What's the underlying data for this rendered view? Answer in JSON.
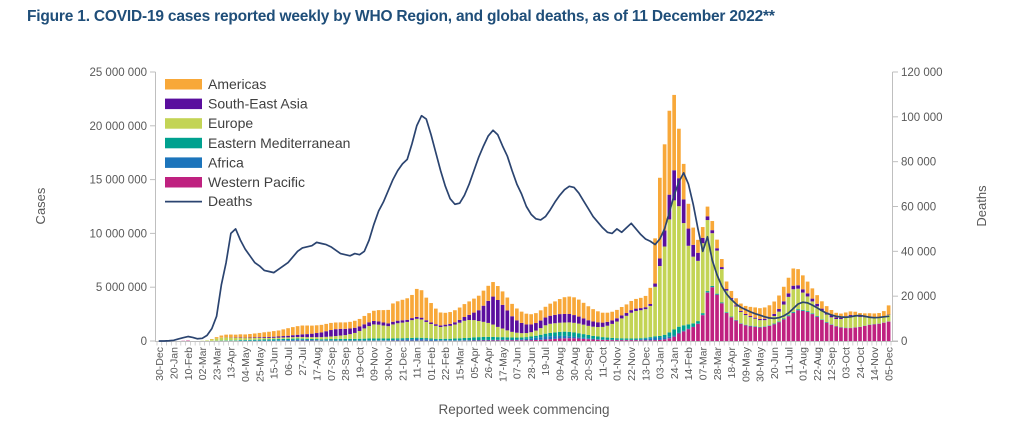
{
  "title": "Figure 1. COVID-19 cases reported weekly by WHO Region, and global deaths, as of 11 December 2022**",
  "colors": {
    "title": "#1F4E79",
    "axis_text": "#595959",
    "axis_line": "#BFBFBF",
    "legend_text": "#404040"
  },
  "chart_data": {
    "type": "stacked-bar+line",
    "x_axis": {
      "label": "Reported week commencing",
      "n_bars": 154,
      "tick_every_n_bars": 3,
      "tick_labels": [
        "30-Dec",
        "20-Jan",
        "10-Feb",
        "02-Mar",
        "23-Mar",
        "13-Apr",
        "04-May",
        "25-May",
        "15-Jun",
        "06-Jul",
        "27-Jul",
        "17-Aug",
        "07-Sep",
        "28-Sep",
        "19-Oct",
        "09-Nov",
        "30-Nov",
        "21-Dec",
        "11-Jan",
        "01-Feb",
        "22-Feb",
        "15-Mar",
        "05-Apr",
        "26-Apr",
        "17-May",
        "07-Jun",
        "28-Jun",
        "19-Jul",
        "09-Aug",
        "30-Aug",
        "20-Sep",
        "11-Oct",
        "01-Nov",
        "22-Nov",
        "13-Dec",
        "03-Jan",
        "24-Jan",
        "14-Feb",
        "07-Mar",
        "28-Mar",
        "18-Apr",
        "09-May",
        "30-May",
        "20-Jun",
        "11-Jul",
        "01-Aug",
        "22-Aug",
        "12-Sep",
        "03-Oct",
        "24-Oct",
        "14-Nov",
        "05-Dec"
      ]
    },
    "y_left": {
      "label": "Cases",
      "max_millions": 25,
      "tick_labels": [
        "0",
        "5 000 000",
        "10 000 000",
        "15 000 000",
        "20 000 000",
        "25 000 000"
      ]
    },
    "y_right": {
      "label": "Deaths",
      "max_thousands": 120,
      "tick_labels": [
        "0",
        "20 000",
        "40 000",
        "60 000",
        "80 000",
        "100 000",
        "120 000"
      ]
    },
    "series_unit": "weekly reported cases, millions",
    "stack_order_bottom_to_top": [
      "Western Pacific",
      "Africa",
      "Eastern Mediterranean",
      "Europe",
      "South-East Asia",
      "Americas"
    ],
    "series": [
      {
        "name": "Americas",
        "color": "#F8A839",
        "values": [
          0,
          0,
          0,
          0,
          0,
          0,
          0,
          0,
          0.01,
          0.01,
          0.01,
          0.04,
          0.12,
          0.2,
          0.25,
          0.27,
          0.27,
          0.29,
          0.3,
          0.33,
          0.36,
          0.4,
          0.45,
          0.48,
          0.52,
          0.56,
          0.62,
          0.7,
          0.75,
          0.8,
          0.82,
          0.8,
          0.75,
          0.72,
          0.7,
          0.68,
          0.66,
          0.62,
          0.6,
          0.6,
          0.62,
          0.65,
          0.7,
          0.78,
          0.85,
          0.95,
          1.05,
          1.15,
          1.25,
          1.7,
          1.8,
          1.9,
          2.0,
          2.15,
          2.6,
          2.55,
          2.1,
          1.8,
          1.45,
          1.2,
          1.1,
          1.1,
          1.12,
          1.15,
          1.2,
          1.25,
          1.3,
          1.35,
          1.4,
          1.4,
          1.35,
          1.3,
          1.25,
          1.2,
          1.15,
          1.1,
          1.05,
          1.0,
          0.95,
          0.92,
          0.95,
          1.0,
          1.12,
          1.25,
          1.4,
          1.55,
          1.62,
          1.65,
          1.58,
          1.45,
          1.3,
          1.15,
          1.02,
          0.92,
          0.85,
          0.8,
          0.78,
          0.78,
          0.8,
          0.85,
          0.9,
          0.95,
          1.05,
          1.5,
          4.2,
          7.5,
          8.0,
          7.8,
          7.0,
          4.6,
          3.3,
          2.3,
          1.6,
          1.2,
          1.0,
          0.9,
          0.85,
          0.8,
          0.75,
          0.7,
          0.66,
          0.65,
          0.68,
          0.75,
          0.85,
          0.95,
          1.0,
          1.05,
          1.1,
          1.15,
          1.25,
          1.35,
          1.45,
          1.6,
          1.5,
          1.3,
          1.1,
          0.95,
          0.8,
          0.68,
          0.58,
          0.5,
          0.43,
          0.38,
          0.35,
          0.33,
          0.32,
          0.31,
          0.31,
          0.32,
          0.34,
          0.38,
          0.5,
          0.85
        ]
      },
      {
        "name": "South-East Asia",
        "color": "#5A0E9E",
        "values": [
          0,
          0,
          0,
          0,
          0,
          0,
          0,
          0,
          0,
          0,
          0,
          0,
          0.01,
          0.01,
          0.02,
          0.02,
          0.03,
          0.04,
          0.04,
          0.05,
          0.06,
          0.07,
          0.08,
          0.09,
          0.1,
          0.11,
          0.13,
          0.15,
          0.18,
          0.21,
          0.25,
          0.28,
          0.32,
          0.38,
          0.44,
          0.52,
          0.6,
          0.64,
          0.62,
          0.58,
          0.52,
          0.48,
          0.42,
          0.38,
          0.35,
          0.32,
          0.3,
          0.28,
          0.26,
          0.25,
          0.24,
          0.22,
          0.2,
          0.19,
          0.18,
          0.17,
          0.16,
          0.15,
          0.15,
          0.15,
          0.16,
          0.18,
          0.21,
          0.26,
          0.35,
          0.48,
          0.7,
          1.0,
          1.5,
          2.05,
          2.6,
          2.5,
          2.2,
          1.85,
          1.45,
          1.15,
          0.95,
          0.8,
          0.72,
          0.7,
          0.7,
          0.72,
          0.75,
          0.78,
          0.8,
          0.8,
          0.78,
          0.72,
          0.65,
          0.58,
          0.52,
          0.48,
          0.44,
          0.4,
          0.36,
          0.33,
          0.3,
          0.28,
          0.26,
          0.24,
          0.22,
          0.2,
          0.18,
          0.18,
          0.3,
          0.7,
          1.5,
          2.3,
          2.8,
          2.6,
          2.2,
          1.6,
          1.1,
          0.75,
          0.5,
          0.35,
          0.28,
          0.22,
          0.18,
          0.15,
          0.12,
          0.11,
          0.1,
          0.1,
          0.1,
          0.1,
          0.11,
          0.13,
          0.16,
          0.2,
          0.25,
          0.3,
          0.33,
          0.33,
          0.32,
          0.3,
          0.28,
          0.26,
          0.24,
          0.22,
          0.2,
          0.18,
          0.15,
          0.13,
          0.11,
          0.09,
          0.07,
          0.06,
          0.05,
          0.05,
          0.04,
          0.04,
          0.03,
          0.03
        ]
      },
      {
        "name": "Europe",
        "color": "#C3D455",
        "values": [
          0,
          0,
          0,
          0,
          0,
          0,
          0,
          0,
          0.01,
          0.02,
          0.05,
          0.12,
          0.2,
          0.25,
          0.26,
          0.24,
          0.22,
          0.2,
          0.18,
          0.17,
          0.16,
          0.15,
          0.14,
          0.13,
          0.13,
          0.13,
          0.13,
          0.13,
          0.14,
          0.14,
          0.15,
          0.16,
          0.17,
          0.18,
          0.2,
          0.22,
          0.24,
          0.28,
          0.32,
          0.36,
          0.44,
          0.55,
          0.72,
          0.95,
          1.15,
          1.3,
          1.28,
          1.2,
          1.15,
          1.3,
          1.4,
          1.45,
          1.5,
          1.65,
          1.75,
          1.7,
          1.5,
          1.35,
          1.2,
          1.1,
          1.15,
          1.2,
          1.3,
          1.45,
          1.6,
          1.65,
          1.6,
          1.5,
          1.4,
          1.3,
          1.15,
          0.95,
          0.8,
          0.65,
          0.52,
          0.45,
          0.4,
          0.38,
          0.4,
          0.48,
          0.62,
          0.78,
          0.85,
          0.85,
          0.85,
          0.85,
          0.88,
          0.9,
          0.9,
          0.88,
          0.85,
          0.85,
          0.88,
          0.95,
          1.1,
          1.3,
          1.55,
          1.85,
          2.1,
          2.4,
          2.55,
          2.6,
          2.65,
          2.9,
          4.6,
          6.5,
          8.2,
          10.5,
          12.0,
          11.2,
          9.5,
          7.3,
          6.2,
          5.6,
          6.5,
          6.6,
          4.9,
          4.0,
          3.1,
          2.0,
          1.6,
          1.25,
          1.05,
          0.9,
          0.8,
          0.7,
          0.62,
          0.58,
          0.6,
          0.7,
          0.9,
          1.3,
          1.7,
          2.1,
          1.9,
          1.6,
          1.35,
          1.1,
          0.9,
          0.78,
          0.7,
          0.65,
          0.65,
          0.75,
          0.95,
          1.1,
          1.05,
          0.9,
          0.78,
          0.68,
          0.6,
          0.55,
          0.52,
          0.6
        ]
      },
      {
        "name": "Eastern Mediterranean",
        "color": "#00A18F",
        "values": [
          0,
          0,
          0,
          0,
          0,
          0,
          0,
          0,
          0.01,
          0.01,
          0.01,
          0.01,
          0.02,
          0.03,
          0.04,
          0.05,
          0.05,
          0.06,
          0.06,
          0.07,
          0.08,
          0.09,
          0.1,
          0.11,
          0.12,
          0.12,
          0.12,
          0.12,
          0.12,
          0.11,
          0.11,
          0.1,
          0.1,
          0.1,
          0.1,
          0.11,
          0.12,
          0.13,
          0.14,
          0.14,
          0.15,
          0.15,
          0.16,
          0.17,
          0.18,
          0.18,
          0.18,
          0.17,
          0.16,
          0.15,
          0.14,
          0.13,
          0.12,
          0.12,
          0.12,
          0.12,
          0.11,
          0.11,
          0.11,
          0.12,
          0.13,
          0.14,
          0.16,
          0.18,
          0.2,
          0.22,
          0.25,
          0.27,
          0.28,
          0.28,
          0.27,
          0.25,
          0.23,
          0.21,
          0.19,
          0.17,
          0.16,
          0.16,
          0.17,
          0.19,
          0.22,
          0.26,
          0.3,
          0.34,
          0.38,
          0.4,
          0.4,
          0.38,
          0.36,
          0.33,
          0.3,
          0.27,
          0.24,
          0.21,
          0.19,
          0.17,
          0.15,
          0.14,
          0.13,
          0.12,
          0.11,
          0.1,
          0.1,
          0.1,
          0.12,
          0.15,
          0.25,
          0.4,
          0.55,
          0.55,
          0.5,
          0.4,
          0.3,
          0.22,
          0.16,
          0.12,
          0.1,
          0.08,
          0.07,
          0.06,
          0.05,
          0.04,
          0.03,
          0.03,
          0.03,
          0.03,
          0.03,
          0.03,
          0.03,
          0.04,
          0.05,
          0.06,
          0.07,
          0.08,
          0.08,
          0.08,
          0.07,
          0.06,
          0.05,
          0.04,
          0.04,
          0.03,
          0.03,
          0.03,
          0.03,
          0.02,
          0.02,
          0.02,
          0.02,
          0.02,
          0.02,
          0.02,
          0.02,
          0.02
        ]
      },
      {
        "name": "Africa",
        "color": "#1C74BB",
        "values": [
          0,
          0,
          0,
          0,
          0,
          0,
          0,
          0,
          0,
          0,
          0,
          0,
          0,
          0.01,
          0.01,
          0.01,
          0.01,
          0.02,
          0.02,
          0.02,
          0.03,
          0.03,
          0.03,
          0.04,
          0.04,
          0.05,
          0.06,
          0.07,
          0.08,
          0.09,
          0.08,
          0.07,
          0.06,
          0.05,
          0.04,
          0.04,
          0.04,
          0.03,
          0.03,
          0.03,
          0.03,
          0.03,
          0.03,
          0.03,
          0.04,
          0.04,
          0.04,
          0.05,
          0.05,
          0.06,
          0.08,
          0.1,
          0.12,
          0.14,
          0.16,
          0.15,
          0.13,
          0.1,
          0.08,
          0.06,
          0.06,
          0.05,
          0.05,
          0.05,
          0.05,
          0.05,
          0.05,
          0.05,
          0.05,
          0.05,
          0.05,
          0.05,
          0.06,
          0.06,
          0.07,
          0.08,
          0.1,
          0.13,
          0.17,
          0.21,
          0.25,
          0.28,
          0.28,
          0.26,
          0.24,
          0.22,
          0.19,
          0.16,
          0.13,
          0.11,
          0.09,
          0.07,
          0.06,
          0.05,
          0.04,
          0.04,
          0.03,
          0.03,
          0.03,
          0.03,
          0.05,
          0.09,
          0.14,
          0.19,
          0.24,
          0.22,
          0.18,
          0.15,
          0.12,
          0.08,
          0.06,
          0.05,
          0.04,
          0.03,
          0.03,
          0.02,
          0.02,
          0.02,
          0.02,
          0.02,
          0.02,
          0.02,
          0.02,
          0.03,
          0.04,
          0.04,
          0.04,
          0.03,
          0.03,
          0.03,
          0.03,
          0.03,
          0.03,
          0.03,
          0.03,
          0.02,
          0.02,
          0.02,
          0.02,
          0.02,
          0.02,
          0.02,
          0.01,
          0.01,
          0.01,
          0.01,
          0.01,
          0.01,
          0.01,
          0.01,
          0.01,
          0.01,
          0.01,
          0.01
        ]
      },
      {
        "name": "Western Pacific",
        "color": "#BF2180",
        "values": [
          0,
          0,
          0,
          0,
          0.01,
          0.02,
          0.04,
          0.01,
          0.01,
          0.01,
          0.01,
          0.01,
          0.01,
          0.01,
          0.01,
          0.01,
          0.01,
          0.01,
          0.01,
          0.01,
          0.01,
          0.01,
          0.01,
          0.01,
          0.01,
          0.01,
          0.02,
          0.02,
          0.02,
          0.03,
          0.03,
          0.03,
          0.03,
          0.03,
          0.02,
          0.02,
          0.02,
          0.02,
          0.02,
          0.02,
          0.02,
          0.02,
          0.02,
          0.02,
          0.02,
          0.02,
          0.02,
          0.02,
          0.02,
          0.03,
          0.03,
          0.03,
          0.03,
          0.03,
          0.03,
          0.03,
          0.03,
          0.02,
          0.02,
          0.02,
          0.02,
          0.02,
          0.02,
          0.02,
          0.03,
          0.03,
          0.04,
          0.04,
          0.05,
          0.05,
          0.06,
          0.06,
          0.07,
          0.07,
          0.07,
          0.07,
          0.07,
          0.07,
          0.08,
          0.09,
          0.11,
          0.14,
          0.17,
          0.2,
          0.23,
          0.25,
          0.26,
          0.25,
          0.23,
          0.2,
          0.17,
          0.14,
          0.12,
          0.1,
          0.09,
          0.08,
          0.08,
          0.08,
          0.08,
          0.08,
          0.08,
          0.07,
          0.07,
          0.07,
          0.08,
          0.1,
          0.15,
          0.25,
          0.4,
          0.7,
          0.9,
          1.1,
          1.3,
          1.6,
          2.4,
          4.5,
          5.0,
          4.3,
          3.5,
          2.6,
          2.2,
          1.9,
          1.6,
          1.45,
          1.35,
          1.3,
          1.25,
          1.3,
          1.4,
          1.55,
          1.75,
          2.0,
          2.3,
          2.6,
          2.85,
          2.8,
          2.7,
          2.5,
          2.25,
          1.95,
          1.7,
          1.5,
          1.35,
          1.25,
          1.2,
          1.2,
          1.25,
          1.3,
          1.4,
          1.5,
          1.55,
          1.6,
          1.7,
          1.8
        ]
      }
    ],
    "line": {
      "name": "Deaths",
      "color": "#2B4470",
      "unit": "weekly reported deaths, thousands",
      "values": [
        0,
        0,
        0.1,
        0.3,
        0.9,
        1.5,
        2.0,
        1.6,
        1.0,
        1.2,
        2.5,
        5.5,
        11,
        25,
        35,
        48,
        50,
        45,
        41,
        38,
        35,
        33.5,
        31.5,
        31,
        30.5,
        32,
        33.5,
        35,
        37.5,
        40,
        41.5,
        42,
        42.5,
        44,
        43.5,
        43,
        42,
        40.5,
        39,
        38.5,
        38,
        39,
        38.5,
        40,
        45,
        52,
        58,
        62,
        67,
        72,
        76,
        79,
        81,
        88,
        96,
        100.5,
        99,
        92,
        84,
        76,
        69,
        63.5,
        61,
        61.5,
        65,
        70,
        76,
        82,
        87,
        91.5,
        94,
        92,
        87,
        82.5,
        76,
        70,
        65.5,
        60,
        56.5,
        54.5,
        54,
        55.5,
        58.5,
        62,
        65,
        67.5,
        69,
        68.5,
        66,
        62.5,
        59,
        55.5,
        53,
        50.5,
        48.5,
        48,
        50,
        48.5,
        50.5,
        52.5,
        50,
        47.5,
        45.5,
        44.5,
        43,
        45.5,
        50,
        57.5,
        65,
        71,
        75,
        70,
        61,
        50,
        40,
        46.5,
        36,
        29.5,
        24.5,
        21,
        18.5,
        16.5,
        15,
        14,
        13,
        12.2,
        11.5,
        10.8,
        10.3,
        10.1,
        10.4,
        11.2,
        12.5,
        14.5,
        16.5,
        17.3,
        17,
        16,
        14.8,
        13.5,
        12.4,
        11.6,
        11,
        10.7,
        10.6,
        10.8,
        11.2,
        11.4,
        11,
        10.6,
        10.4,
        10.5,
        10.8,
        11
      ]
    }
  }
}
